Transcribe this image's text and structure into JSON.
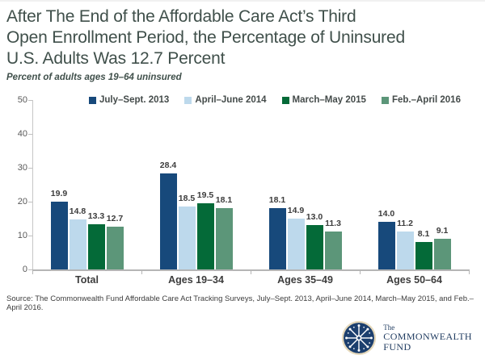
{
  "header": {
    "title_lines": [
      "After The End of the Affordable Care Act’s Third",
      "Open Enrollment Period, the Percentage of Uninsured",
      "U.S. Adults Was 12.7 Percent"
    ],
    "subtitle": "Percent of adults ages 19–64 uninsured"
  },
  "chart_data": {
    "type": "bar",
    "categories": [
      "Total",
      "Ages 19–34",
      "Ages 35–49",
      "Ages 50–64"
    ],
    "series": [
      {
        "name": "July–Sept. 2013",
        "color": "#17497B",
        "values": [
          19.9,
          28.4,
          18.1,
          14.0
        ]
      },
      {
        "name": "April–June 2014",
        "color": "#BDD9EC",
        "values": [
          14.8,
          18.5,
          14.9,
          11.2
        ]
      },
      {
        "name": "March–May 2015",
        "color": "#046A38",
        "values": [
          13.3,
          19.5,
          13.0,
          8.1
        ]
      },
      {
        "name": "Feb.–April 2016",
        "color": "#5C9679",
        "values": [
          12.7,
          18.1,
          11.3,
          9.1
        ]
      }
    ],
    "title": "After The End of the Affordable Care Act’s Third Open Enrollment Period, the Percentage of Uninsured U.S. Adults Was 12.7 Percent",
    "xlabel": "",
    "ylabel": "Percent of adults ages 19–64 uninsured",
    "ylim": [
      0,
      50
    ],
    "yticks": [
      0,
      10,
      20,
      30,
      40,
      50
    ],
    "grid": false,
    "legend_position": "top",
    "value_labels": true
  },
  "footer": {
    "source": "Source: The Commonwealth Fund Affordable Care Act Tracking Surveys, July–Sept. 2013, April–June 2014, March–May 2015, and Feb.–April 2016.",
    "logo": {
      "line1": "The",
      "line2": "COMMONWEALTH",
      "line3": "FUND"
    }
  }
}
